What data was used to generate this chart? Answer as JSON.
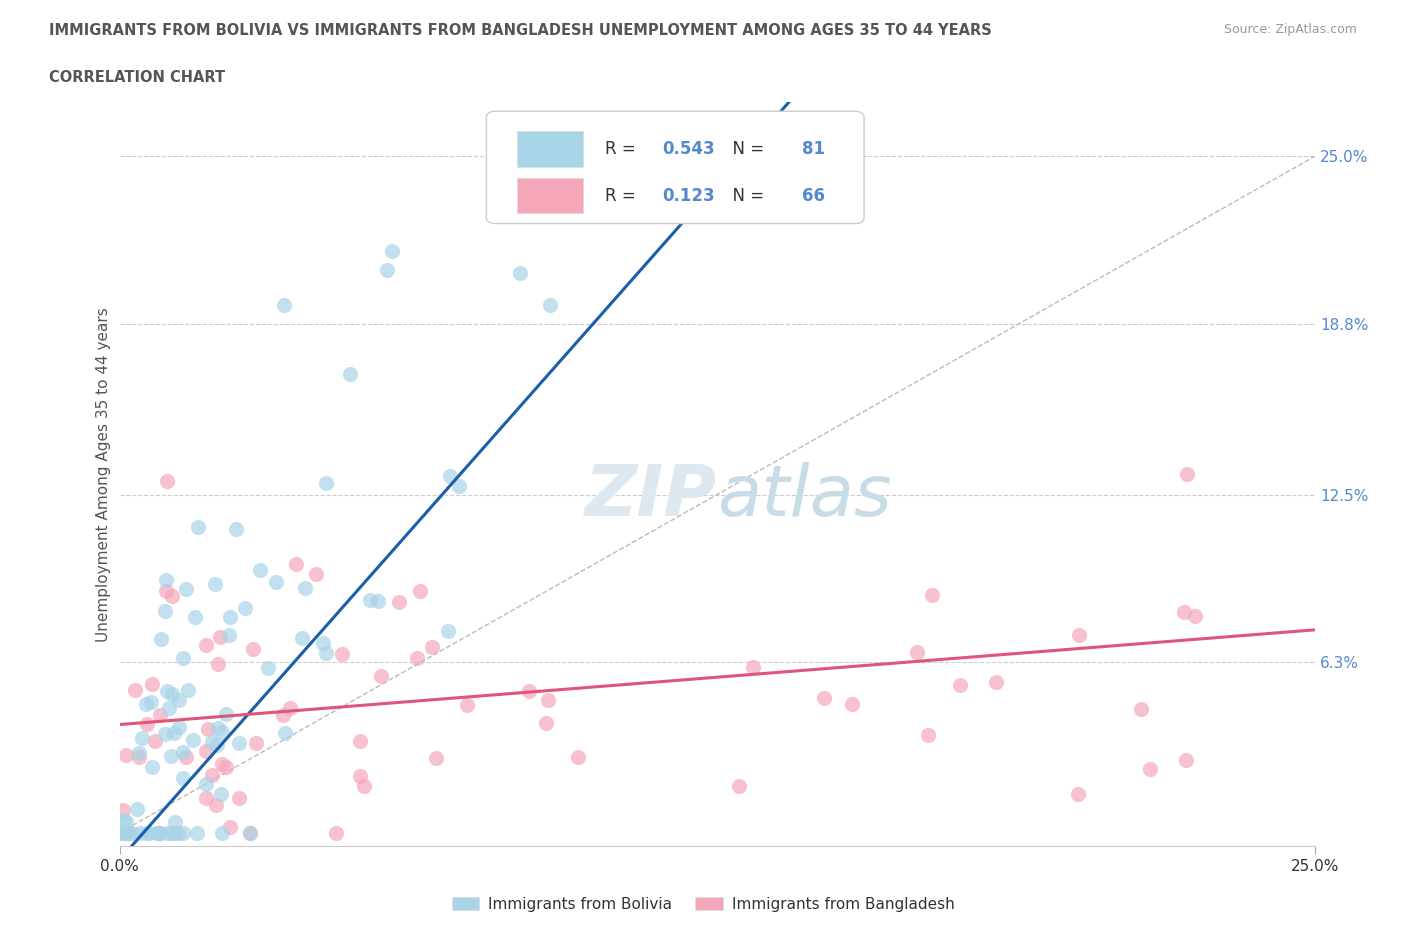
{
  "title_line1": "IMMIGRANTS FROM BOLIVIA VS IMMIGRANTS FROM BANGLADESH UNEMPLOYMENT AMONG AGES 35 TO 44 YEARS",
  "title_line2": "CORRELATION CHART",
  "source": "Source: ZipAtlas.com",
  "ylabel": "Unemployment Among Ages 35 to 44 years",
  "xlim": [
    0.0,
    0.25
  ],
  "ylim": [
    -0.005,
    0.27
  ],
  "ytick_right_values": [
    0.25,
    0.188,
    0.125,
    0.063
  ],
  "ytick_right_labels": [
    "25.0%",
    "18.8%",
    "12.5%",
    "6.3%"
  ],
  "R_bolivia": 0.543,
  "N_bolivia": 81,
  "R_bangladesh": 0.123,
  "N_bangladesh": 66,
  "color_bolivia": "#a8d4e8",
  "color_bangladesh": "#f4a7b9",
  "line_color_bolivia": "#1a5fa8",
  "line_color_bangladesh": "#e0557a",
  "diagonal_color": "#bbbbbb",
  "bolivia_slope": 2.8,
  "bolivia_intercept": -0.01,
  "bangladesh_slope": 0.08,
  "bangladesh_intercept": 0.04
}
